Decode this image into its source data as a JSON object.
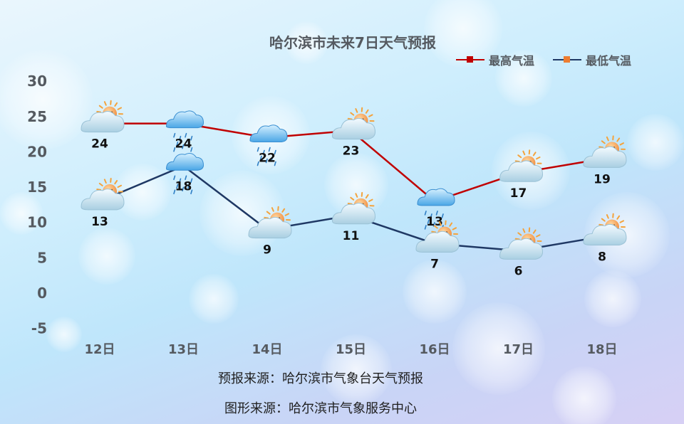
{
  "chart_data": {
    "type": "line",
    "title": "哈尔滨市未来7日天气预报",
    "categories": [
      "12日",
      "13日",
      "14日",
      "15日",
      "16日",
      "17日",
      "18日"
    ],
    "ylim": [
      -5,
      30
    ],
    "yticks": [
      -5,
      0,
      5,
      10,
      15,
      20,
      25,
      30
    ],
    "grid": false,
    "legend_position": "top-right",
    "series": [
      {
        "name": "最高气温",
        "color": "#c00000",
        "values": [
          24,
          24,
          22,
          23,
          13,
          17,
          19
        ],
        "icons": [
          "cloudy-sunny-icon",
          "rain-icon",
          "rain-icon",
          "cloudy-sunny-icon",
          "rain-icon",
          "cloudy-sunny-icon",
          "cloudy-sunny-icon"
        ]
      },
      {
        "name": "最低气温",
        "color": "#1f3864",
        "values": [
          13,
          18,
          9,
          11,
          7,
          6,
          8
        ],
        "icons": [
          "cloudy-sunny-icon",
          "rain-icon",
          "cloudy-sunny-icon",
          "cloudy-sunny-icon",
          "cloudy-sunny-icon",
          "cloudy-sunny-icon",
          "cloudy-sunny-icon"
        ]
      }
    ],
    "legend_marker_colors": [
      "#c00000",
      "#ed7d31"
    ]
  },
  "footer": {
    "source_forecast": "预报来源：哈尔滨市气象台天气预报",
    "source_graphic": "图形来源：哈尔滨市气象服务中心"
  }
}
